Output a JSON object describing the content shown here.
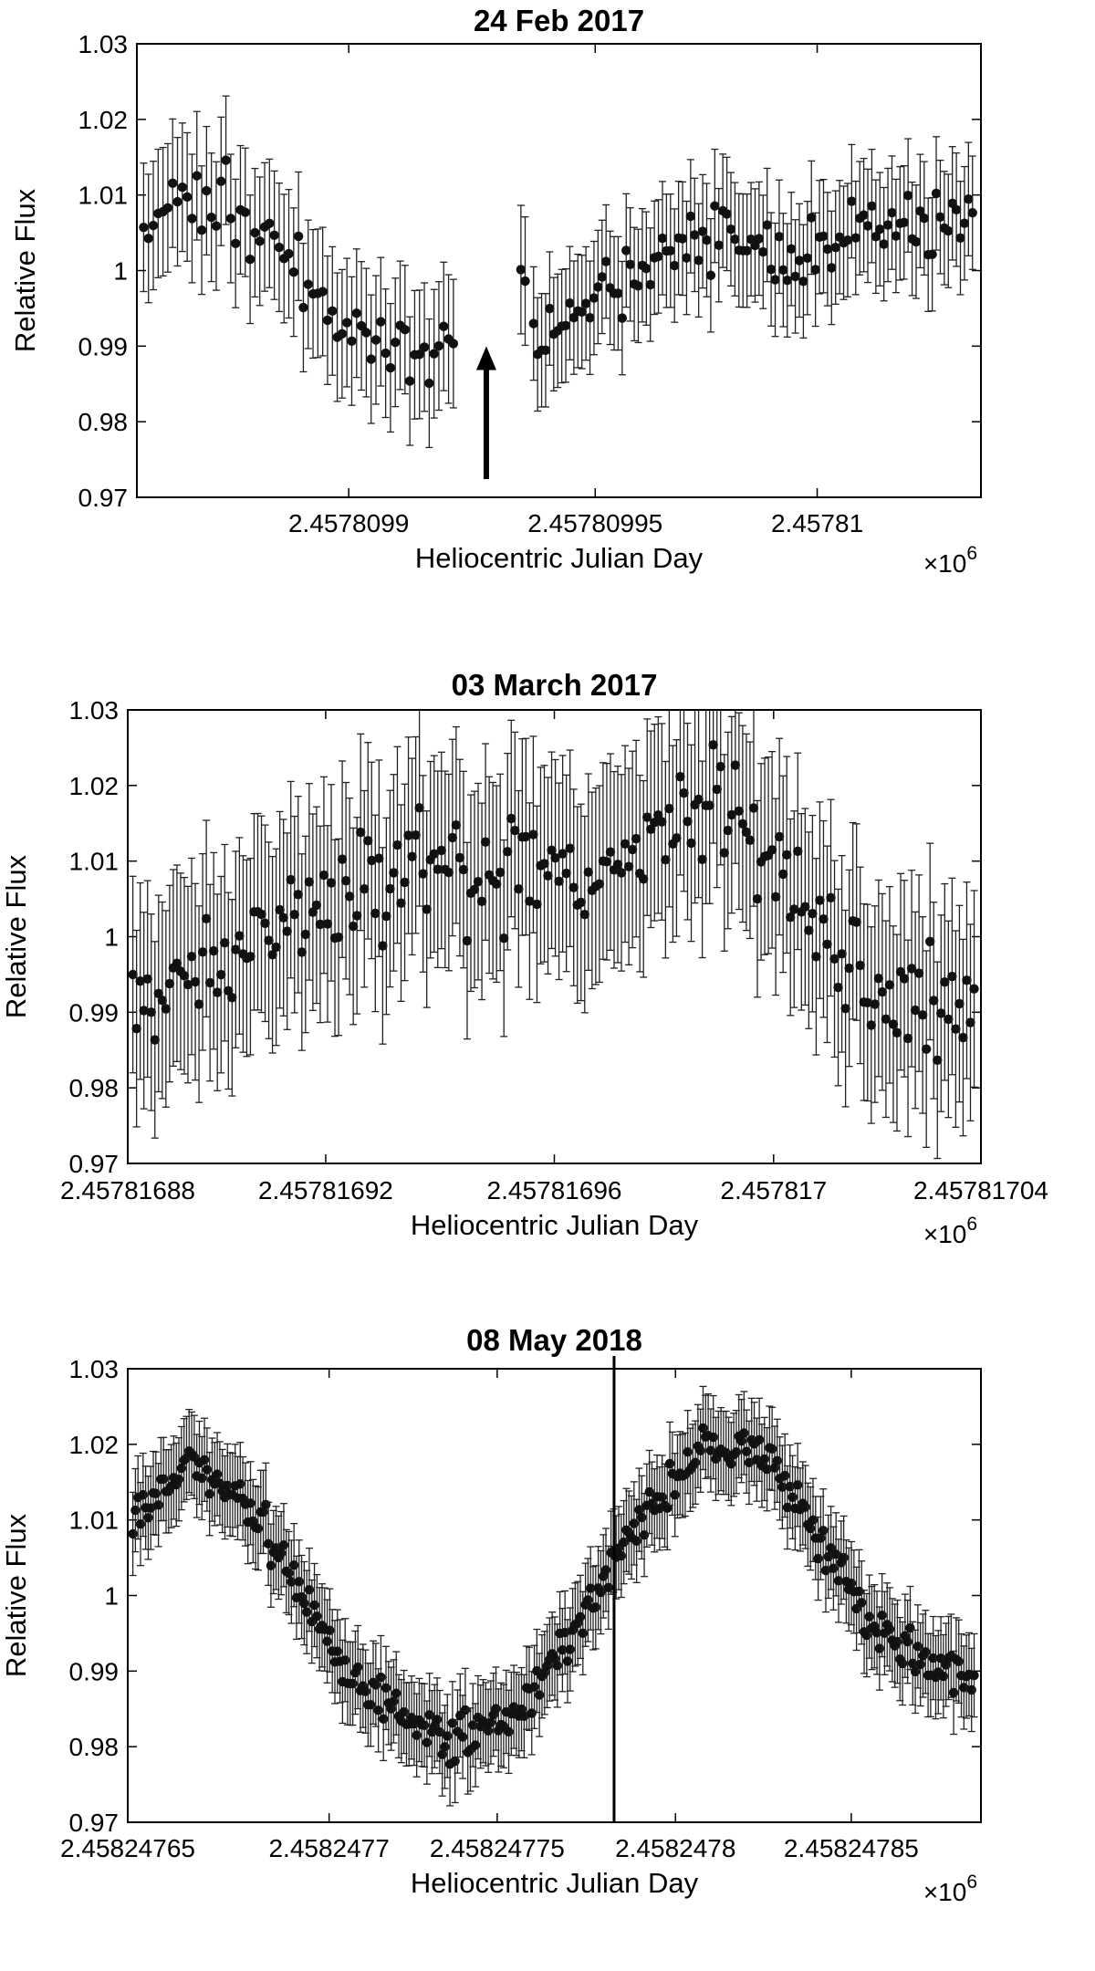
{
  "chart_data": [
    {
      "type": "scatter",
      "title": "24 Feb 2017",
      "xlabel": "Heliocentric Julian Day",
      "ylabel": "Relative Flux",
      "x_multiplier": "×10",
      "x_multiplier_exp": "6",
      "ylim": [
        0.97,
        1.03
      ],
      "yticks": [
        0.97,
        0.98,
        0.99,
        1,
        1.01,
        1.02,
        1.03
      ],
      "ytick_labels": [
        "0.97",
        "0.98",
        "0.99",
        "1",
        "1.01",
        "1.02",
        "1.03"
      ],
      "xtick_labels": [
        "2.4578099",
        "2.45780995",
        "2.45781"
      ],
      "grid": false,
      "error_bars": true,
      "marker_color": "#111111",
      "annotation": "upward arrow marking gap in data",
      "segments": [
        {
          "n": 65,
          "y": [
            1.004,
            1.011,
            1.01,
            1.002,
            0.996,
            0.991,
            0.989,
            0.99
          ],
          "err": 0.0085
        },
        {
          "n": 2,
          "y": [
            1.0,
            1.0
          ],
          "err": 0.0085
        },
        {
          "n": 110,
          "y": [
            0.991,
            0.996,
            1.001,
            1.004,
            1.002,
            1.005,
            1.006,
            1.007
          ],
          "err": 0.0075
        }
      ],
      "gap_after_segment": 0
    },
    {
      "type": "scatter",
      "title": "03 March 2017",
      "xlabel": "Heliocentric Julian Day",
      "ylabel": "Relative Flux",
      "x_multiplier": "×10",
      "x_multiplier_exp": "6",
      "ylim": [
        0.97,
        1.03
      ],
      "yticks": [
        0.97,
        0.98,
        0.99,
        1,
        1.01,
        1.02,
        1.03
      ],
      "ytick_labels": [
        "0.97",
        "0.98",
        "0.99",
        "1",
        "1.01",
        "1.02",
        "1.03"
      ],
      "xtick_labels": [
        "2.45781688",
        "2.45781692",
        "2.45781696",
        "2.457817",
        "2.45781704"
      ],
      "grid": false,
      "error_bars": true,
      "marker_color": "#111111",
      "segments": [
        {
          "n": 230,
          "y": [
            0.99,
            0.995,
            1.0,
            1.005,
            1.008,
            1.009,
            1.008,
            1.006,
            1.012,
            1.018,
            1.008,
            0.995,
            0.991,
            0.99
          ],
          "err": 0.013
        }
      ]
    },
    {
      "type": "scatter",
      "title": "08 May 2018",
      "xlabel": "Heliocentric Julian Day",
      "ylabel": "Relative Flux",
      "x_multiplier": "×10",
      "x_multiplier_exp": "6",
      "ylim": [
        0.97,
        1.03
      ],
      "yticks": [
        0.97,
        0.98,
        0.99,
        1,
        1.01,
        1.02,
        1.03
      ],
      "ytick_labels": [
        "0.97",
        "0.98",
        "0.99",
        "1",
        "1.01",
        "1.02",
        "1.03"
      ],
      "xtick_labels": [
        "2.45824765",
        "2.4582477",
        "2.45824775",
        "2.4582478",
        "2.45824785"
      ],
      "grid": false,
      "error_bars": true,
      "marker_color": "#111111",
      "vertical_line": true,
      "segments": [
        {
          "n": 330,
          "y": [
            1.011,
            1.017,
            1.014,
            1.003,
            0.99,
            0.985,
            0.981,
            0.983,
            0.991,
            1.003,
            1.013,
            1.02,
            1.019,
            1.008,
            0.997,
            0.991,
            0.989
          ],
          "err": 0.0055
        }
      ]
    }
  ]
}
